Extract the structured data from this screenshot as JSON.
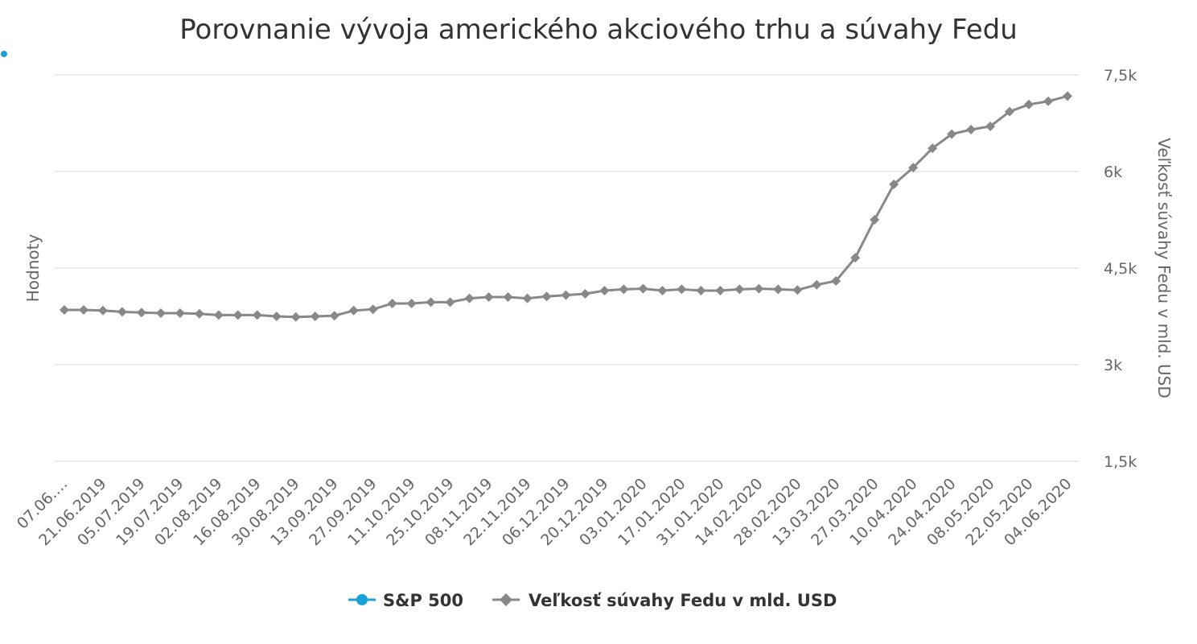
{
  "chart_data": {
    "type": "line",
    "title": "Porovnanie vývoja amerického akciového trhu a súvahy Fedu",
    "ylabel_left": "Hodnoty",
    "ylabel_right": "Veľkosť súvahy Fedu v mld. USD",
    "y_right_range": [
      1500,
      7500
    ],
    "y_right_ticks": [
      "1,5k",
      "3k",
      "4,5k",
      "6k",
      "7,5k"
    ],
    "grid": true,
    "legend_position": "bottom-center",
    "x_labels": [
      "07.06.…",
      "21.06.2019",
      "05.07.2019",
      "19.07.2019",
      "02.08.2019",
      "16.08.2019",
      "30.08.2019",
      "13.09.2019",
      "27.09.2019",
      "11.10.2019",
      "25.10.2019",
      "08.11.2019",
      "22.11.2019",
      "06.12.2019",
      "20.12.2019",
      "03.01.2020",
      "17.01.2020",
      "31.01.2020",
      "14.02.2020",
      "28.02.2020",
      "13.03.2020",
      "27.03.2020",
      "10.04.2020",
      "24.04.2020",
      "08.05.2020",
      "22.05.2020",
      "04.06.2020"
    ],
    "series": [
      {
        "name": "S&P 500",
        "color": "#1aa1d6",
        "marker": "circle",
        "values": []
      },
      {
        "name": "Veľkosť súvahy Fedu v mld. USD",
        "color": "#888888",
        "marker": "diamond",
        "values": [
          3850,
          3850,
          3840,
          3820,
          3810,
          3800,
          3800,
          3790,
          3770,
          3770,
          3770,
          3750,
          3740,
          3750,
          3760,
          3840,
          3860,
          3950,
          3950,
          3970,
          3970,
          4030,
          4050,
          4050,
          4030,
          4060,
          4080,
          4100,
          4150,
          4170,
          4180,
          4150,
          4170,
          4150,
          4150,
          4170,
          4180,
          4170,
          4160,
          4240,
          4300,
          4660,
          5250,
          5800,
          6060,
          6360,
          6580,
          6650,
          6700,
          6930,
          7040,
          7090,
          7170
        ]
      }
    ]
  }
}
